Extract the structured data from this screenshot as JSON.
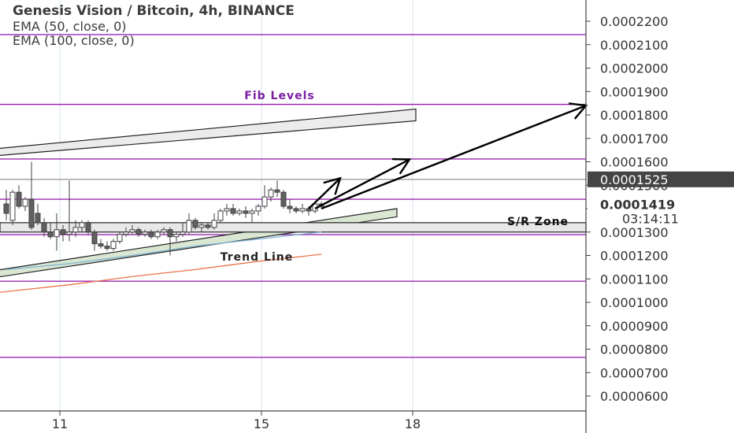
{
  "chart_data": {
    "type": "candlestick",
    "title": "Genesis Vision / Bitcoin, 4h, BINANCE",
    "indicators": [
      "EMA (50, close, 0)",
      "EMA (100, close, 0)"
    ],
    "ylim": [
      5.5e-05,
      0.000235
    ],
    "y_ticks": [
      "0.0000600",
      "0.0000700",
      "0.0000800",
      "0.0000900",
      "0.0001000",
      "0.0001100",
      "0.0001200",
      "0.0001300",
      "0.0001400",
      "0.0001500",
      "0.0001600",
      "0.0001700",
      "0.0001800",
      "0.0001900",
      "0.0002000",
      "0.0002100",
      "0.0002200"
    ],
    "y_tick_values": [
      6e-05,
      7e-05,
      8e-05,
      9e-05,
      0.0001,
      0.00011,
      0.00012,
      0.00013,
      0.00014,
      0.00015,
      0.00016,
      0.00017,
      0.00018,
      0.00019,
      0.0002,
      0.00021,
      0.00022
    ],
    "x_ticks": [
      "11",
      "15",
      "18"
    ],
    "x_tick_index": [
      8.5,
      40.5,
      64.5
    ],
    "x_index_range": [
      0,
      92
    ],
    "fib_levels": [
      0.0002143,
      0.0001845,
      0.0001612,
      0.000144,
      0.0001289,
      0.000109,
      7.65e-05
    ],
    "price_label": "0.0001525",
    "price_value": 0.0001525,
    "countdown_price": "0.0001419",
    "countdown_price_value": 0.0001419,
    "countdown": "03:14:11",
    "annotations": {
      "fib": "Fib Levels",
      "sr": "S/R Zone",
      "trend": "Trend Line"
    },
    "colors": {
      "fib": "#9c27b0",
      "up_body": "#ffffff",
      "down_body": "#606060",
      "wick": "#404040",
      "ema50": "#7fb3d5",
      "ema100": "#e8734a",
      "price_box": "#444444"
    },
    "candles": [
      [
        0,
        0.000142,
        0.000148,
        0.000138,
        0.000135
      ],
      [
        1,
        0.000135,
        0.000148,
        0.000147,
        0.000133
      ],
      [
        2,
        0.000147,
        0.00015,
        0.000141,
        0.00014
      ],
      [
        3,
        0.000141,
        0.000145,
        0.000144,
        0.000139
      ],
      [
        4,
        0.000144,
        0.00016,
        0.000132,
        0.000131
      ],
      [
        5,
        0.000138,
        0.000142,
        0.000134,
        0.000133
      ],
      [
        6,
        0.000134,
        0.000136,
        0.00013,
        0.000128
      ],
      [
        7,
        0.00013,
        0.000134,
        0.000128,
        0.000127
      ],
      [
        8,
        0.000128,
        0.000138,
        0.000131,
        0.000122
      ],
      [
        9,
        0.000131,
        0.000133,
        0.000129,
        0.000126
      ],
      [
        10,
        0.000129,
        0.000152,
        0.00013,
        0.000126
      ],
      [
        11,
        0.00013,
        0.000135,
        0.000132,
        0.000128
      ],
      [
        12,
        0.000132,
        0.000135,
        0.000134,
        0.00013
      ],
      [
        13,
        0.000134,
        0.000135,
        0.00013,
        0.000129
      ],
      [
        14,
        0.00013,
        0.000131,
        0.000125,
        0.000122
      ],
      [
        15,
        0.000125,
        0.000127,
        0.000124,
        0.000123
      ],
      [
        16,
        0.000124,
        0.000126,
        0.000123,
        0.000122
      ],
      [
        17,
        0.000123,
        0.000127,
        0.000126,
        0.000122
      ],
      [
        18,
        0.000126,
        0.00013,
        0.000129,
        0.000125
      ],
      [
        19,
        0.000129,
        0.000132,
        0.00013,
        0.000128
      ],
      [
        20,
        0.00013,
        0.000133,
        0.000131,
        0.000129
      ],
      [
        21,
        0.000131,
        0.000132,
        0.000129,
        0.000128
      ],
      [
        22,
        0.000129,
        0.000131,
        0.00013,
        0.000128
      ],
      [
        23,
        0.00013,
        0.000131,
        0.000128,
        0.000127
      ],
      [
        24,
        0.000128,
        0.000131,
        0.00013,
        0.000127
      ],
      [
        25,
        0.00013,
        0.000132,
        0.000131,
        0.000129
      ],
      [
        26,
        0.000131,
        0.000132,
        0.000128,
        0.00012
      ],
      [
        27,
        0.000128,
        0.00013,
        0.000129,
        0.000126
      ],
      [
        28,
        0.000129,
        0.000134,
        0.00013,
        0.000128
      ],
      [
        29,
        0.00013,
        0.000138,
        0.000135,
        0.000129
      ],
      [
        30,
        0.000135,
        0.000136,
        0.000132,
        0.000131
      ],
      [
        31,
        0.000132,
        0.000134,
        0.000133,
        0.00013
      ],
      [
        32,
        0.000133,
        0.000134,
        0.000132,
        0.000131
      ],
      [
        33,
        0.000132,
        0.000138,
        0.000135,
        0.000131
      ],
      [
        34,
        0.000135,
        0.00014,
        0.000139,
        0.000134
      ],
      [
        35,
        0.000139,
        0.000142,
        0.00014,
        0.000137
      ],
      [
        36,
        0.00014,
        0.000142,
        0.000138,
        0.000137
      ],
      [
        37,
        0.000138,
        0.00014,
        0.000139,
        0.000137
      ],
      [
        38,
        0.000139,
        0.000141,
        0.000138,
        0.000136
      ],
      [
        39,
        0.000138,
        0.00014,
        0.000139,
        0.000134
      ],
      [
        40,
        0.000139,
        0.000142,
        0.000141,
        0.000137
      ],
      [
        41,
        0.000141,
        0.00015,
        0.000145,
        0.00014
      ],
      [
        42,
        0.000145,
        0.000149,
        0.000148,
        0.000143
      ],
      [
        43,
        0.000148,
        0.000152,
        0.000147,
        0.000145
      ],
      [
        44,
        0.000147,
        0.000148,
        0.000141,
        0.00014
      ],
      [
        45,
        0.000141,
        0.000144,
        0.00014,
        0.000138
      ],
      [
        46,
        0.00014,
        0.000141,
        0.000139,
        0.000138
      ],
      [
        47,
        0.000139,
        0.000142,
        0.00014,
        0.000138
      ],
      [
        48,
        0.00014,
        0.000141,
        0.000139,
        0.000137
      ],
      [
        49,
        0.000139,
        0.000143,
        0.000142,
        0.000138
      ],
      [
        50,
        0.000142,
        0.000143,
        0.000141,
        0.00014
      ]
    ],
    "ema50": [
      [
        0,
        0.000114
      ],
      [
        10,
        0.0001165
      ],
      [
        20,
        0.00012
      ],
      [
        30,
        0.000124
      ],
      [
        40,
        0.000127
      ],
      [
        50,
        0.00013
      ]
    ],
    "ema100": [
      [
        -2,
        0.000104
      ],
      [
        10,
        0.0001075
      ],
      [
        20,
        0.000111
      ],
      [
        30,
        0.000114
      ],
      [
        40,
        0.0001175
      ],
      [
        50,
        0.0001205
      ]
    ],
    "channel_upper": [
      [
        -2,
        0.0001655,
        0.0001625
      ],
      [
        65,
        0.0001825,
        0.0001775
      ]
    ],
    "channel_lower": [
      [
        -2,
        0.0001135,
        0.0001105
      ],
      [
        62,
        0.00014,
        0.0001365
      ]
    ],
    "sr_zone": [
      0.000134,
      0.00013
    ],
    "arrows": [
      [
        [
          48,
          0.00014
        ],
        [
          53,
          0.000153
        ]
      ],
      [
        [
          49,
          0.00014
        ],
        [
          64,
          0.000161
        ]
      ],
      [
        [
          50,
          0.00014
        ],
        [
          95,
          0.000184
        ]
      ]
    ]
  }
}
